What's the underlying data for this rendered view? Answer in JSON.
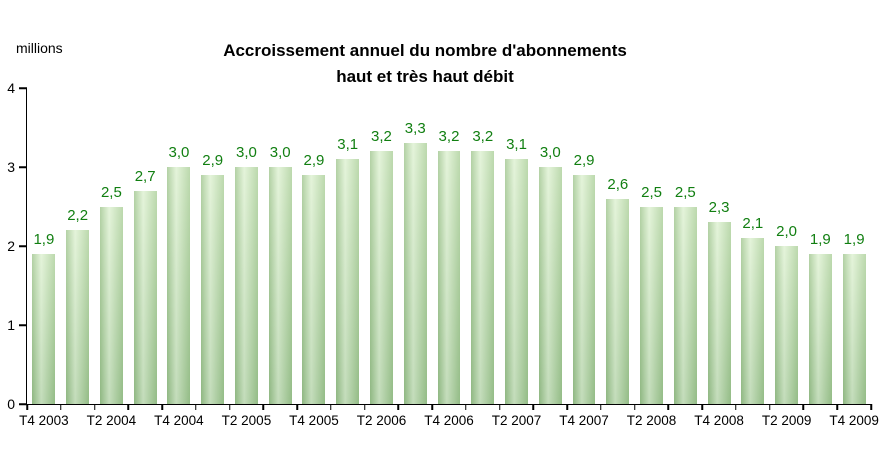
{
  "chart_data": {
    "type": "bar",
    "title_line1": "Accroissement annuel du nombre d'abonnements",
    "title_line2": "haut et très haut débit",
    "ylabel": "millions",
    "ylim": [
      0,
      4
    ],
    "y_ticks": [
      4,
      3,
      2,
      1,
      0
    ],
    "x_tick_labels": [
      "T4 2003",
      "T2 2004",
      "T4 2004",
      "T2 2005",
      "T4 2005",
      "T2 2006",
      "T4 2006",
      "T2 2007",
      "T4 2007",
      "T2 2008",
      "T4 2008",
      "T2 2009",
      "T4 2009"
    ],
    "x_label_every": 2,
    "values": [
      1.9,
      2.2,
      2.5,
      2.7,
      3.0,
      2.9,
      3.0,
      3.0,
      2.9,
      3.1,
      3.2,
      3.3,
      3.2,
      3.2,
      3.1,
      3.0,
      2.9,
      2.6,
      2.5,
      2.5,
      2.3,
      2.1,
      2.0,
      1.9,
      1.9
    ],
    "value_labels": [
      "1,9",
      "2,2",
      "2,5",
      "2,7",
      "3,0",
      "2,9",
      "3,0",
      "3,0",
      "2,9",
      "3,1",
      "3,2",
      "3,3",
      "3,2",
      "3,2",
      "3,1",
      "3,0",
      "2,9",
      "2,6",
      "2,5",
      "2,5",
      "2,3",
      "2,1",
      "2,0",
      "1,9",
      "1,9"
    ],
    "grid": false,
    "legend": false,
    "colors": {
      "bar_top": "#d4edc4",
      "bar_bottom": "#9fc791",
      "value_label": "#117f11",
      "axis": "#000000",
      "background": "#ffffff"
    }
  }
}
